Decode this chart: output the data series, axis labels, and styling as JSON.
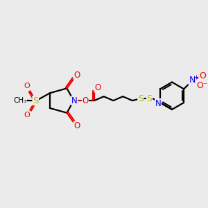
{
  "background_color": "#ebebeb",
  "colors": {
    "C": "#000000",
    "N": "#0000ee",
    "O": "#ee0000",
    "S": "#bbbb00"
  },
  "lw": 1.6,
  "fs": 8.5
}
